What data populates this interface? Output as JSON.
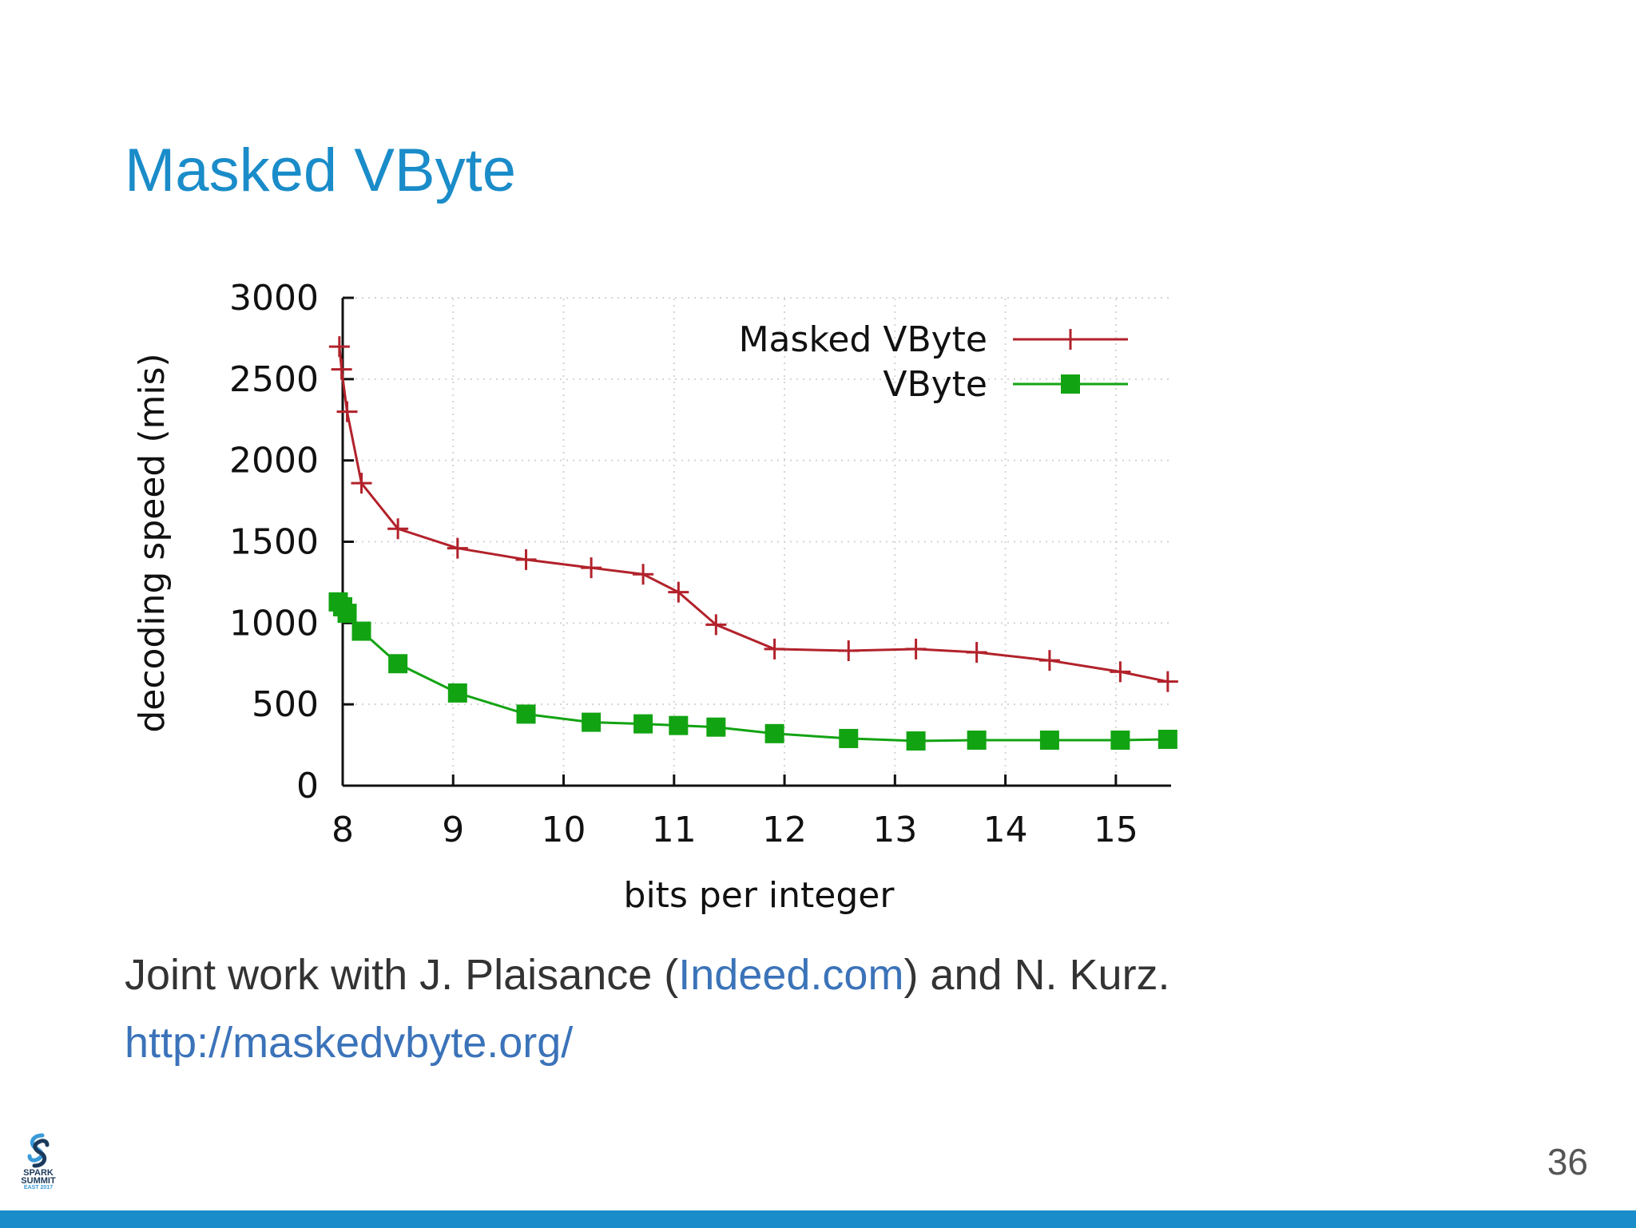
{
  "slide": {
    "title": "Masked VByte",
    "credit_prefix": "Joint work with J. Plaisance (",
    "credit_link": "Indeed.com",
    "credit_suffix": ") and N. Kurz.",
    "url": "http://maskedvbyte.org/",
    "page_number": "36",
    "logo_line1": "SPARK",
    "logo_line2": "SUMMIT",
    "logo_line3": "EAST 2017"
  },
  "colors": {
    "title": "#1a8cc9",
    "link": "#3b73b9",
    "bar": "#1a8cc9",
    "masked": "#b2222b",
    "vbyte": "#12a312"
  },
  "chart_data": {
    "type": "line",
    "xlabel": "bits per integer",
    "ylabel": "decoding speed (mis)",
    "xlim": [
      8,
      15.5
    ],
    "ylim": [
      0,
      3000
    ],
    "xticks": [
      8,
      9,
      10,
      11,
      12,
      13,
      14,
      15
    ],
    "yticks": [
      0,
      500,
      1000,
      1500,
      2000,
      2500,
      3000
    ],
    "grid": true,
    "legend_position": "top-right",
    "series": [
      {
        "name": "Masked VByte",
        "marker": "plus",
        "points": [
          [
            7.97,
            2700
          ],
          [
            7.99,
            2560
          ],
          [
            8.04,
            2300
          ],
          [
            8.17,
            1860
          ],
          [
            8.5,
            1580
          ],
          [
            9.04,
            1460
          ],
          [
            9.66,
            1390
          ],
          [
            10.25,
            1340
          ],
          [
            10.72,
            1300
          ],
          [
            11.04,
            1190
          ],
          [
            11.38,
            990
          ],
          [
            11.91,
            840
          ],
          [
            12.58,
            830
          ],
          [
            13.19,
            840
          ],
          [
            13.74,
            820
          ],
          [
            14.4,
            770
          ],
          [
            15.04,
            700
          ],
          [
            15.47,
            640
          ]
        ]
      },
      {
        "name": "VByte",
        "marker": "square",
        "points": [
          [
            7.96,
            1130
          ],
          [
            8.0,
            1100
          ],
          [
            8.04,
            1060
          ],
          [
            8.17,
            950
          ],
          [
            8.5,
            750
          ],
          [
            9.04,
            570
          ],
          [
            9.66,
            440
          ],
          [
            10.25,
            390
          ],
          [
            10.72,
            380
          ],
          [
            11.04,
            370
          ],
          [
            11.38,
            360
          ],
          [
            11.91,
            320
          ],
          [
            12.58,
            290
          ],
          [
            13.19,
            275
          ],
          [
            13.74,
            280
          ],
          [
            14.4,
            280
          ],
          [
            15.04,
            280
          ],
          [
            15.47,
            285
          ]
        ]
      }
    ]
  }
}
